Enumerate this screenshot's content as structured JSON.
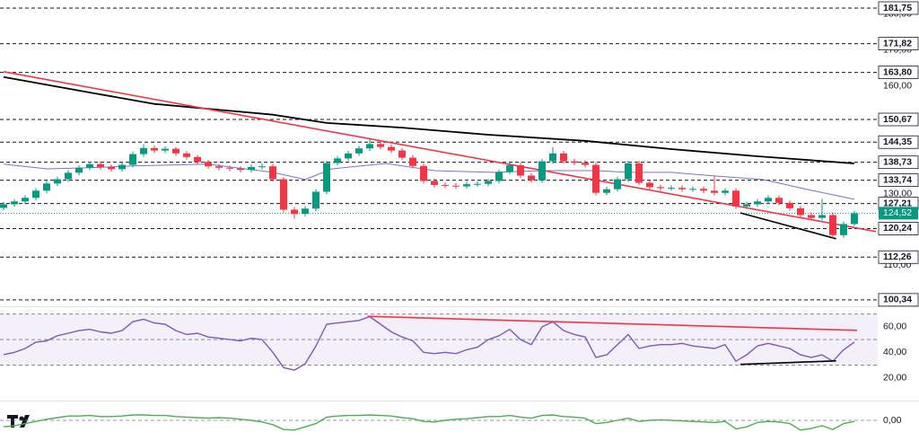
{
  "chart_data": [
    {
      "type": "candlestick",
      "ylim": [
        98.8,
        184.0
      ],
      "yticks": [
        {
          "value": 180,
          "label": "180,00"
        },
        {
          "value": 170,
          "label": "170,00"
        },
        {
          "value": 160,
          "label": "160,00"
        },
        {
          "value": 130,
          "label": "130,00"
        },
        {
          "value": 110,
          "label": "110,00"
        }
      ],
      "levels": [
        {
          "value": 181.75,
          "label": "181,75"
        },
        {
          "value": 171.82,
          "label": "171,82"
        },
        {
          "value": 163.8,
          "label": "163,80"
        },
        {
          "value": 150.67,
          "label": "150,67"
        },
        {
          "value": 144.35,
          "label": "144,35"
        },
        {
          "value": 138.73,
          "label": "138,73"
        },
        {
          "value": 133.74,
          "label": "133,74"
        },
        {
          "value": 127.21,
          "label": "127,21"
        },
        {
          "value": 120.24,
          "label": "120,24"
        },
        {
          "value": 112.26,
          "label": "112,26"
        },
        {
          "value": 100.34,
          "label": "100,34"
        }
      ],
      "last_price": {
        "value": 124.52,
        "label": "124,52",
        "color": "#089981"
      },
      "up_color": "#089981",
      "down_color": "#f23645",
      "open": [
        126.0,
        127.0,
        127.8,
        128.8,
        130.8,
        132.8,
        134.0,
        135.8,
        137.2,
        138.2,
        137.4,
        136.8,
        138.0,
        141.0,
        142.7,
        142.0,
        142.5,
        141.2,
        140.2,
        138.8,
        137.6,
        137.2,
        137.0,
        136.6,
        137.4,
        137.6,
        134.0,
        125.5,
        124.3,
        125.8,
        130.5,
        138.5,
        139.8,
        141.2,
        142.6,
        143.8,
        143.0,
        142.0,
        140.0,
        137.7,
        133.5,
        132.4,
        132.2,
        132.0,
        132.6,
        132.7,
        133.5,
        136.0,
        137.9,
        135.0,
        133.7,
        139.0,
        141.2,
        139.0,
        138.6,
        138.0,
        130.2,
        131.2,
        134.0,
        138.4,
        133.0,
        131.8,
        131.5,
        131.6,
        131.2,
        131.3,
        130.8,
        130.2,
        130.8,
        126.4,
        127.0,
        127.8,
        128.8,
        127.4,
        125.9,
        124.0,
        123.2,
        124.0,
        118.4,
        121.5
      ],
      "high": [
        127.7,
        128.5,
        129.5,
        131.5,
        133.5,
        134.7,
        136.5,
        137.9,
        138.9,
        139.0,
        138.1,
        138.7,
        141.7,
        143.8,
        143.4,
        143.2,
        143.0,
        141.8,
        140.8,
        139.4,
        138.2,
        137.8,
        137.6,
        138.1,
        138.4,
        138.3,
        134.6,
        126.2,
        126.5,
        131.2,
        139.2,
        140.5,
        141.9,
        143.3,
        145.5,
        144.5,
        143.7,
        142.7,
        140.7,
        138.4,
        134.2,
        133.1,
        132.9,
        133.3,
        133.4,
        134.2,
        136.7,
        138.6,
        138.6,
        135.7,
        139.7,
        143.0,
        141.9,
        139.7,
        139.3,
        138.7,
        131.9,
        134.7,
        139.1,
        139.1,
        133.7,
        132.5,
        132.3,
        132.3,
        132.0,
        132.0,
        135.0,
        131.5,
        131.5,
        127.7,
        128.5,
        129.5,
        129.5,
        128.1,
        126.6,
        124.7,
        128.5,
        124.7,
        122.2,
        125.2
      ],
      "low": [
        125.3,
        126.3,
        127.1,
        128.1,
        130.1,
        132.1,
        133.3,
        135.1,
        136.5,
        136.7,
        136.1,
        136.1,
        137.3,
        140.3,
        141.3,
        141.3,
        140.5,
        139.5,
        138.1,
        136.9,
        136.5,
        136.3,
        135.9,
        135.9,
        136.7,
        133.3,
        124.8,
        123.0,
        123.6,
        125.1,
        129.8,
        137.8,
        139.1,
        140.5,
        141.9,
        142.3,
        141.3,
        139.3,
        137.0,
        132.8,
        131.7,
        131.5,
        131.3,
        131.3,
        131.9,
        132.0,
        132.8,
        135.3,
        134.3,
        133.0,
        133.0,
        138.3,
        138.3,
        137.9,
        137.3,
        129.5,
        129.5,
        130.5,
        133.3,
        132.3,
        131.1,
        130.8,
        130.8,
        130.5,
        130.5,
        130.1,
        129.5,
        129.5,
        125.7,
        125.7,
        126.3,
        127.1,
        126.7,
        125.2,
        123.3,
        122.5,
        122.5,
        117.5,
        117.7,
        121.0
      ],
      "close": [
        127.0,
        127.8,
        128.8,
        130.8,
        132.8,
        134.0,
        135.8,
        137.2,
        138.2,
        137.4,
        136.8,
        138.0,
        141.0,
        142.7,
        142.0,
        142.5,
        141.2,
        140.2,
        138.8,
        137.6,
        137.2,
        137.0,
        136.6,
        137.4,
        137.6,
        134.0,
        125.5,
        124.3,
        125.8,
        130.5,
        138.5,
        139.8,
        141.2,
        142.6,
        143.8,
        143.0,
        142.0,
        140.0,
        137.7,
        133.5,
        132.4,
        132.2,
        132.0,
        132.6,
        132.7,
        133.5,
        136.0,
        137.9,
        135.0,
        133.7,
        139.0,
        141.2,
        139.0,
        138.6,
        138.0,
        130.2,
        131.2,
        134.0,
        138.4,
        133.0,
        131.8,
        131.5,
        131.6,
        131.2,
        131.3,
        130.8,
        130.2,
        130.8,
        126.4,
        127.0,
        127.8,
        128.8,
        127.4,
        125.9,
        124.0,
        123.2,
        124.0,
        118.4,
        121.5,
        124.52
      ],
      "series": [
        {
          "color": "#7b6fd8",
          "x": [
            0,
            4,
            8,
            12,
            19,
            25,
            28,
            30.5,
            35.5,
            40,
            45.5,
            50,
            55,
            58,
            62,
            66,
            70.5,
            75,
            79
          ],
          "values": [
            138.2,
            136.9,
            137.2,
            137.7,
            138.2,
            135.9,
            133.9,
            136.9,
            138.4,
            136.4,
            135.9,
            136.4,
            136.4,
            135.9,
            135.9,
            134.9,
            133.9,
            130.9,
            128.4
          ]
        },
        {
          "color": "#000000",
          "x": [
            0,
            8,
            14,
            25,
            30,
            37,
            45,
            54,
            62,
            70,
            79
          ],
          "values": [
            162.5,
            158.2,
            155.0,
            152.0,
            149.7,
            148.4,
            146.4,
            144.7,
            142.4,
            140.4,
            138.4
          ]
        }
      ],
      "trendlines": [
        {
          "color": "#f23645",
          "x": [
            0,
            81
          ],
          "values": [
            164.0,
            119.4
          ]
        },
        {
          "color": "#000000",
          "x": [
            68.4,
            77.3
          ],
          "values": [
            124.6,
            117.4
          ]
        }
      ]
    },
    {
      "type": "line",
      "ylim": [
        12,
        74
      ],
      "yticks": [
        {
          "value": 60,
          "label": "60,00"
        },
        {
          "value": 40,
          "label": "40,00"
        },
        {
          "value": 20,
          "label": "20,00"
        }
      ],
      "band": [
        30,
        70
      ],
      "midline": 50,
      "band_color": "#7e57c2",
      "series": [
        {
          "color": "#7e57c2",
          "values": [
            38.2,
            40,
            43,
            48,
            49,
            53,
            55,
            57,
            58,
            56,
            55,
            57,
            64,
            66,
            63,
            62,
            57,
            54,
            55,
            52,
            51,
            50,
            49,
            51,
            50,
            40,
            28,
            26,
            31,
            45,
            62,
            63,
            64,
            65,
            68,
            62,
            56,
            52,
            49,
            40,
            39,
            40,
            39,
            42,
            44,
            50,
            53,
            58,
            50,
            46,
            60,
            64,
            57,
            54,
            52,
            36,
            38,
            46,
            54,
            43,
            45,
            46,
            46,
            47,
            45,
            44,
            43,
            46,
            33,
            38,
            45,
            47,
            45,
            43,
            38,
            36,
            38,
            33,
            42,
            48
          ]
        }
      ],
      "trendlines": [
        {
          "color": "#f23645",
          "x": [
            33.8,
            79.25
          ],
          "values": [
            68.2,
            57.2
          ]
        },
        {
          "color": "#000000",
          "x": [
            68.4,
            77.3
          ],
          "values": [
            30.5,
            33.3
          ]
        }
      ]
    },
    {
      "type": "line",
      "ylim": [
        -3,
        3
      ],
      "yticks": [
        {
          "value": 0,
          "label": "0,00"
        }
      ],
      "series": [
        {
          "color": "#4caf50",
          "values": [
            -1.2,
            -1.0,
            -0.6,
            -0.2,
            0.2,
            0.5,
            0.8,
            0.8,
            0.9,
            0.7,
            0.7,
            0.8,
            1.0,
            1.0,
            0.9,
            0.9,
            0.7,
            0.6,
            0.5,
            0.4,
            0.5,
            0.4,
            0.2,
            0.0,
            -0.3,
            -0.8,
            -1.7,
            -1.8,
            -1.2,
            -0.6,
            0.6,
            0.8,
            0.9,
            0.9,
            1.0,
            0.9,
            0.8,
            0.5,
            0.3,
            -0.2,
            -0.3,
            0.0,
            0.2,
            0.3,
            0.5,
            0.7,
            0.7,
            0.9,
            0.6,
            0.4,
            0.9,
            1.0,
            0.7,
            0.6,
            0.4,
            -0.6,
            -0.4,
            0.0,
            0.4,
            -0.2,
            0.0,
            0.1,
            0.0,
            -0.1,
            -0.2,
            -0.3,
            -0.4,
            -0.2,
            -1.6,
            -1.2,
            -0.4,
            -0.2,
            -0.3,
            -0.6,
            -1.8,
            -1.5,
            -1.0,
            -1.7,
            -0.6,
            -0.2
          ]
        }
      ]
    }
  ]
}
